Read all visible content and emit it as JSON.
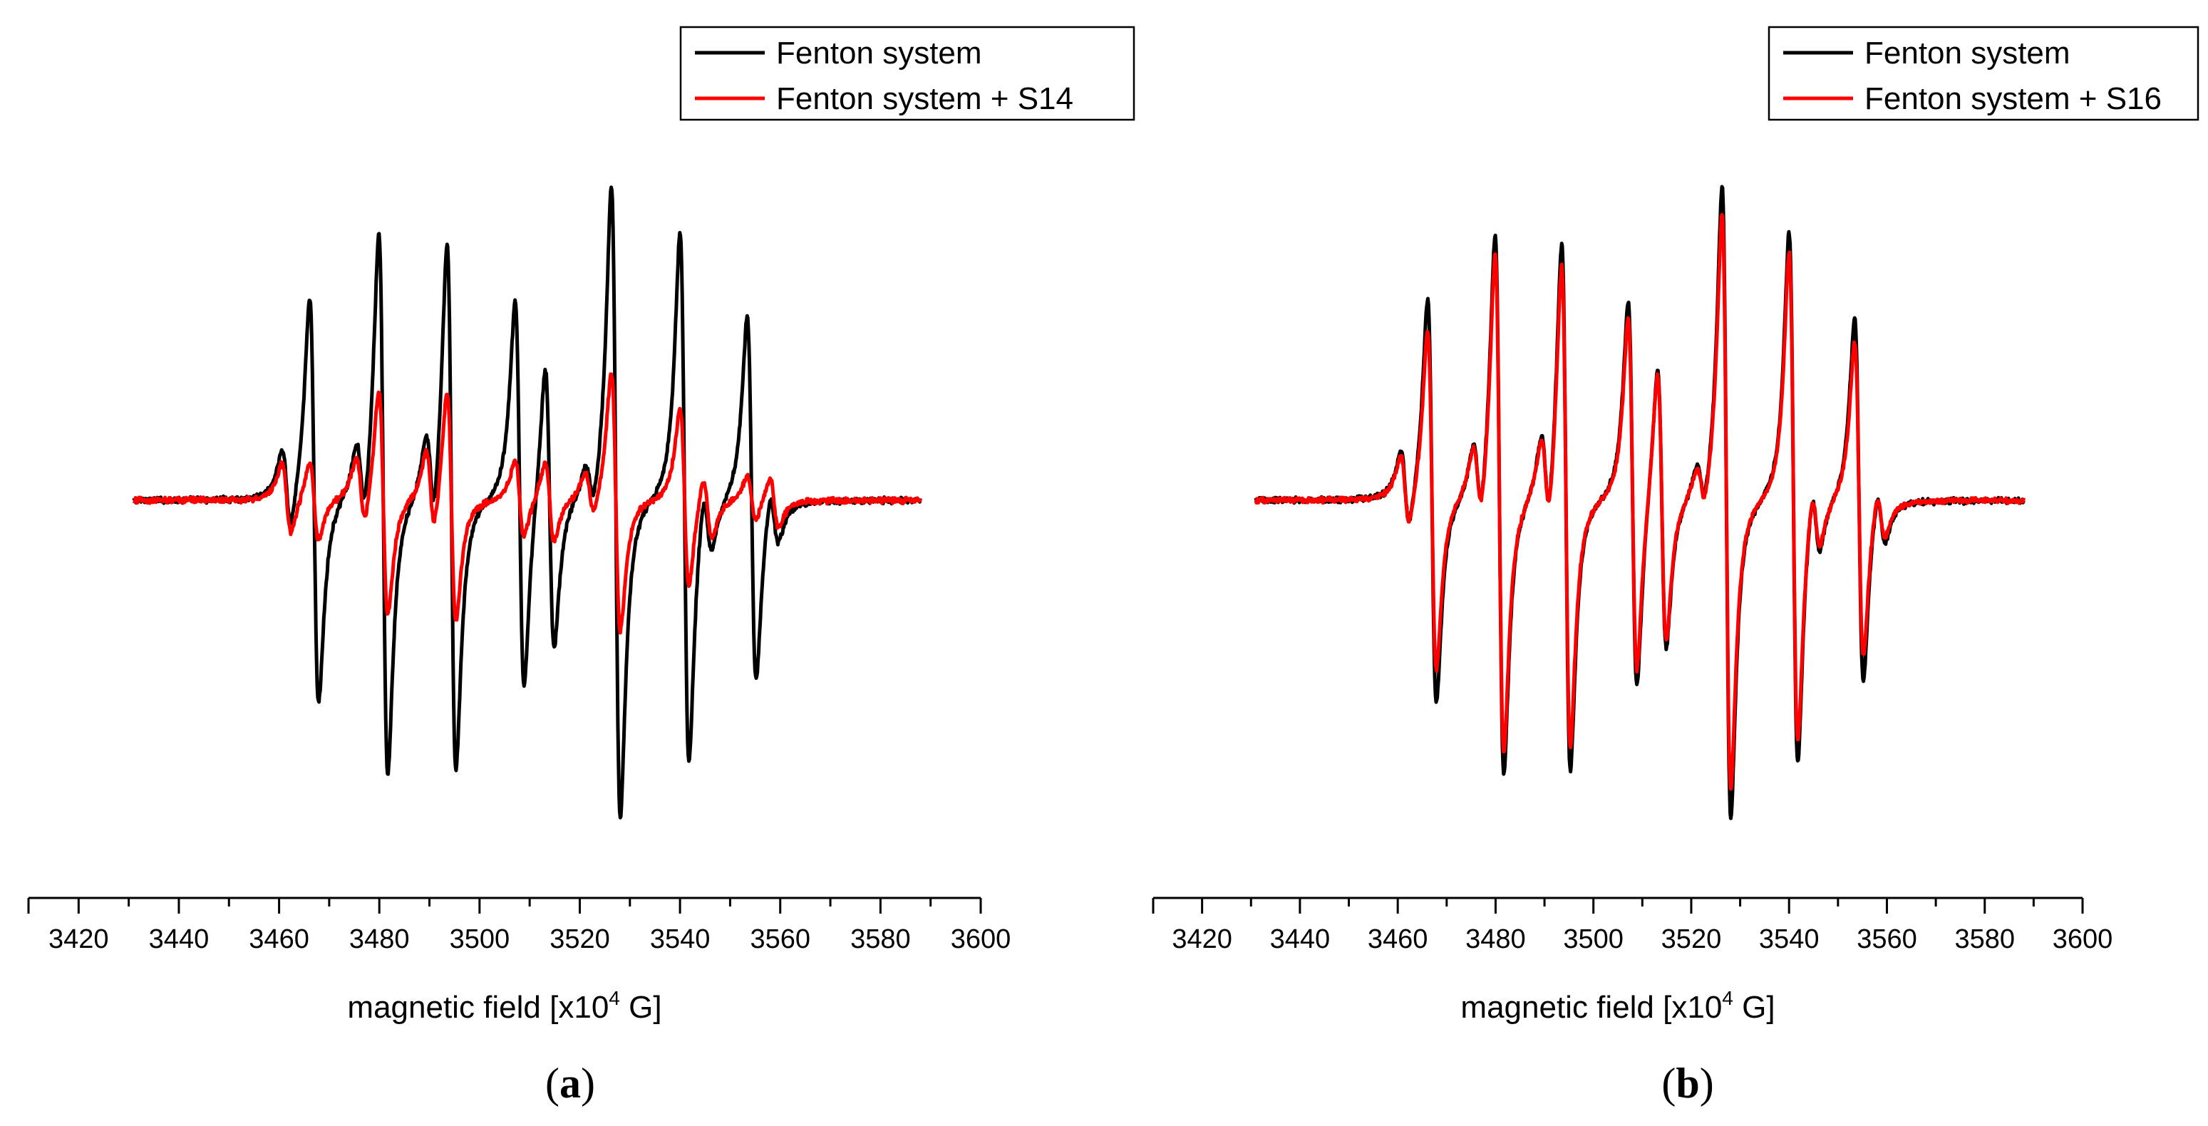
{
  "chart_data": [
    {
      "type": "line",
      "panel_label": "(a)",
      "panel_letter": "a",
      "xlabel": "magnetic field [x10",
      "xlabel_sup": "4",
      "xlabel_suffix": " G]",
      "ylabel": "",
      "xlim": [
        3410,
        3600
      ],
      "xticks": [
        3420,
        3440,
        3460,
        3480,
        3500,
        3520,
        3540,
        3560,
        3580,
        3600
      ],
      "x_range": [
        3431,
        3588
      ],
      "legend": {
        "position": "top-right"
      },
      "series": [
        {
          "name": "Fenton system",
          "color": "#000000",
          "peaks": [
            {
              "x": 3461.5,
              "amp": 0.25
            },
            {
              "x": 3467.0,
              "amp": 1.25
            },
            {
              "x": 3476.3,
              "amp": 0.25
            },
            {
              "x": 3480.8,
              "amp": 1.68
            },
            {
              "x": 3490.2,
              "amp": 0.3
            },
            {
              "x": 3494.4,
              "amp": 1.64
            },
            {
              "x": 3508.0,
              "amp": 1.2
            },
            {
              "x": 3514.0,
              "amp": 0.88
            },
            {
              "x": 3522.0,
              "amp": 0.15
            },
            {
              "x": 3527.2,
              "amp": 1.95
            },
            {
              "x": 3540.9,
              "amp": 1.64
            },
            {
              "x": 3545.5,
              "amp": 0.22
            },
            {
              "x": 3554.3,
              "amp": 1.13
            },
            {
              "x": 3558.8,
              "amp": 0.18
            }
          ],
          "noise": 0.022
        },
        {
          "name": "Fenton system + S14",
          "color": "#ff0000",
          "peaks": [
            {
              "x": 3461.5,
              "amp": 0.22
            },
            {
              "x": 3467.0,
              "amp": 0.24
            },
            {
              "x": 3476.3,
              "amp": 0.22
            },
            {
              "x": 3480.8,
              "amp": 0.7
            },
            {
              "x": 3490.2,
              "amp": 0.26
            },
            {
              "x": 3494.4,
              "amp": 0.72
            },
            {
              "x": 3508.0,
              "amp": 0.24
            },
            {
              "x": 3514.0,
              "amp": 0.25
            },
            {
              "x": 3522.0,
              "amp": 0.14
            },
            {
              "x": 3527.2,
              "amp": 0.8
            },
            {
              "x": 3540.9,
              "amp": 0.55
            },
            {
              "x": 3545.5,
              "amp": 0.2
            },
            {
              "x": 3554.3,
              "amp": 0.14
            },
            {
              "x": 3558.8,
              "amp": 0.16
            }
          ],
          "noise": 0.022
        }
      ]
    },
    {
      "type": "line",
      "panel_label": "(b)",
      "panel_letter": "b",
      "xlabel": "magnetic field [x10",
      "xlabel_sup": "4",
      "xlabel_suffix": " G]",
      "ylabel": "",
      "xlim": [
        3410,
        3600
      ],
      "xticks": [
        3420,
        3440,
        3460,
        3480,
        3500,
        3520,
        3540,
        3560,
        3580,
        3600
      ],
      "x_range": [
        3431,
        3588
      ],
      "legend": {
        "position": "top-right"
      },
      "series": [
        {
          "name": "Fenton system",
          "color": "#000000",
          "peaks": [
            {
              "x": 3461.5,
              "amp": 0.25
            },
            {
              "x": 3467.0,
              "amp": 1.25
            },
            {
              "x": 3476.3,
              "amp": 0.25
            },
            {
              "x": 3480.8,
              "amp": 1.68
            },
            {
              "x": 3490.2,
              "amp": 0.3
            },
            {
              "x": 3494.4,
              "amp": 1.64
            },
            {
              "x": 3508.0,
              "amp": 1.2
            },
            {
              "x": 3514.0,
              "amp": 0.88
            },
            {
              "x": 3522.0,
              "amp": 0.15
            },
            {
              "x": 3527.2,
              "amp": 1.95
            },
            {
              "x": 3540.9,
              "amp": 1.64
            },
            {
              "x": 3545.5,
              "amp": 0.22
            },
            {
              "x": 3554.3,
              "amp": 1.13
            },
            {
              "x": 3558.8,
              "amp": 0.18
            }
          ],
          "noise": 0.022
        },
        {
          "name": "Fenton system + S16",
          "color": "#ff0000",
          "peaks": [
            {
              "x": 3461.5,
              "amp": 0.23
            },
            {
              "x": 3467.0,
              "amp": 1.05
            },
            {
              "x": 3476.3,
              "amp": 0.24
            },
            {
              "x": 3480.8,
              "amp": 1.55
            },
            {
              "x": 3490.2,
              "amp": 0.28
            },
            {
              "x": 3494.4,
              "amp": 1.5
            },
            {
              "x": 3508.0,
              "amp": 1.1
            },
            {
              "x": 3514.0,
              "amp": 0.84
            },
            {
              "x": 3522.0,
              "amp": 0.14
            },
            {
              "x": 3527.2,
              "amp": 1.78
            },
            {
              "x": 3540.9,
              "amp": 1.52
            },
            {
              "x": 3545.5,
              "amp": 0.2
            },
            {
              "x": 3554.3,
              "amp": 0.98
            },
            {
              "x": 3558.8,
              "amp": 0.16
            }
          ],
          "noise": 0.02
        }
      ]
    }
  ]
}
